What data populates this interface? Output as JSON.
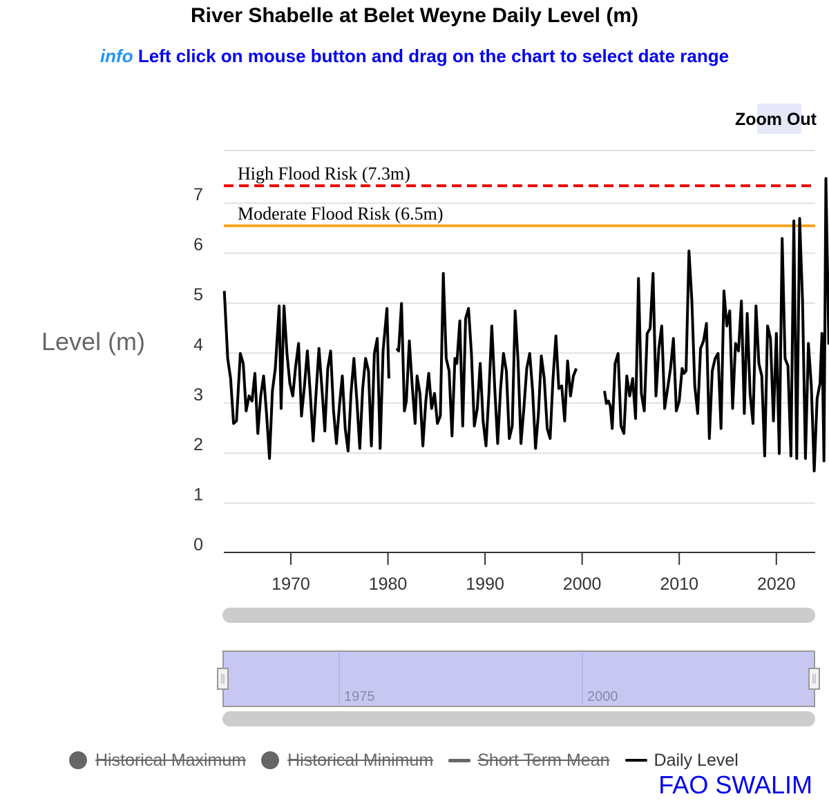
{
  "header": {
    "title": "River Shabelle at Belet Weyne Daily Level (m)",
    "info_word": "info",
    "info_text": "Left click on mouse button and drag on the chart to select date range"
  },
  "toolbar": {
    "zoom_out_label": "Zoom Out"
  },
  "credit": "FAO SWALIM",
  "legend": {
    "items": [
      {
        "label": "Historical Maximum",
        "marker": "circle",
        "active": false
      },
      {
        "label": "Historical Minimum",
        "marker": "circle",
        "active": false
      },
      {
        "label": "Short Term Mean",
        "marker": "line",
        "active": false
      },
      {
        "label": "Daily Level",
        "marker": "line",
        "active": true
      }
    ]
  },
  "colors": {
    "daily_level": "#000000",
    "high_flood": "#ee0000",
    "moderate_flood": "#f5a623",
    "grid": "#e0e0e0",
    "navigator_fill": "#c7c7f2",
    "scrollbar": "#cccccc"
  },
  "chart_data": {
    "type": "line",
    "title": "River Shabelle at Belet Weyne Daily Level (m)",
    "xlabel": "",
    "ylabel": "Level (m)",
    "xlim": [
      1963.1,
      2024.0
    ],
    "ylim": [
      0,
      8
    ],
    "grid": true,
    "x_ticks": [
      1970,
      1980,
      1990,
      2000,
      2010,
      2020
    ],
    "y_ticks": [
      0,
      1,
      2,
      3,
      4,
      5,
      6,
      7
    ],
    "navigator_ticks": [
      1975,
      2000
    ],
    "legend_position": "bottom",
    "thresholds": [
      {
        "name": "High Flood Risk",
        "label": "High Flood Risk (7.3m)",
        "value": 7.3,
        "style": "dashed",
        "color": "#ee0000"
      },
      {
        "name": "Moderate Flood Risk",
        "label": "Moderate Flood Risk (6.5m)",
        "value": 6.5,
        "style": "solid",
        "color": "#f5a623"
      }
    ],
    "series": [
      {
        "name": "Daily Level",
        "segments": [
          [
            [
              1963.15,
              5.05
            ],
            [
              1963.5,
              3.7
            ],
            [
              1963.8,
              3.3
            ],
            [
              1964.1,
              2.4
            ],
            [
              1964.4,
              2.45
            ],
            [
              1964.8,
              3.8
            ],
            [
              1965.1,
              3.6
            ],
            [
              1965.4,
              2.65
            ],
            [
              1965.7,
              2.95
            ],
            [
              1966.0,
              2.85
            ],
            [
              1966.3,
              3.4
            ],
            [
              1966.6,
              2.2
            ],
            [
              1966.9,
              2.95
            ],
            [
              1967.2,
              3.35
            ],
            [
              1967.5,
              2.6
            ],
            [
              1967.8,
              1.7
            ],
            [
              1968.1,
              3.05
            ],
            [
              1968.4,
              3.5
            ],
            [
              1968.8,
              4.75
            ],
            [
              1969.0,
              2.7
            ],
            [
              1969.3,
              4.75
            ],
            [
              1969.6,
              3.8
            ],
            [
              1969.9,
              3.2
            ],
            [
              1970.2,
              2.95
            ],
            [
              1970.5,
              3.55
            ],
            [
              1970.8,
              4.0
            ],
            [
              1971.1,
              2.55
            ],
            [
              1971.4,
              3.15
            ],
            [
              1971.7,
              3.85
            ],
            [
              1972.0,
              3.0
            ],
            [
              1972.3,
              2.05
            ],
            [
              1972.6,
              3.0
            ],
            [
              1972.9,
              3.9
            ],
            [
              1973.2,
              3.1
            ],
            [
              1973.5,
              2.25
            ],
            [
              1973.8,
              3.5
            ],
            [
              1974.1,
              3.85
            ],
            [
              1974.4,
              2.65
            ],
            [
              1974.7,
              2.0
            ],
            [
              1975.0,
              2.75
            ],
            [
              1975.3,
              3.35
            ],
            [
              1975.6,
              2.3
            ],
            [
              1975.9,
              1.85
            ],
            [
              1976.2,
              3.0
            ],
            [
              1976.5,
              3.7
            ],
            [
              1976.8,
              2.85
            ],
            [
              1977.1,
              1.9
            ],
            [
              1977.4,
              3.1
            ],
            [
              1977.7,
              3.7
            ],
            [
              1978.0,
              3.45
            ],
            [
              1978.3,
              1.95
            ],
            [
              1978.6,
              3.8
            ],
            [
              1978.9,
              4.1
            ],
            [
              1979.2,
              1.9
            ],
            [
              1979.5,
              3.85
            ],
            [
              1979.9,
              4.7
            ],
            [
              1980.1,
              3.3
            ]
          ],
          [
            [
              1980.9,
              3.9
            ],
            [
              1981.1,
              3.85
            ],
            [
              1981.4,
              4.8
            ],
            [
              1981.7,
              2.65
            ],
            [
              1981.9,
              2.85
            ],
            [
              1982.2,
              4.05
            ],
            [
              1982.5,
              3.15
            ],
            [
              1982.8,
              2.4
            ],
            [
              1983.0,
              3.35
            ],
            [
              1983.3,
              3.0
            ],
            [
              1983.6,
              1.95
            ],
            [
              1983.9,
              2.85
            ],
            [
              1984.2,
              3.4
            ],
            [
              1984.5,
              2.7
            ],
            [
              1984.8,
              3.0
            ],
            [
              1985.1,
              2.4
            ],
            [
              1985.4,
              2.55
            ],
            [
              1985.7,
              5.4
            ],
            [
              1986.0,
              3.7
            ],
            [
              1986.3,
              3.45
            ],
            [
              1986.6,
              2.15
            ],
            [
              1986.9,
              3.7
            ],
            [
              1987.1,
              3.6
            ],
            [
              1987.4,
              4.45
            ],
            [
              1987.7,
              2.35
            ],
            [
              1988.0,
              4.5
            ],
            [
              1988.3,
              4.7
            ],
            [
              1988.6,
              3.8
            ],
            [
              1988.9,
              2.35
            ],
            [
              1989.2,
              2.7
            ],
            [
              1989.5,
              3.6
            ],
            [
              1989.8,
              2.45
            ],
            [
              1990.1,
              1.95
            ],
            [
              1990.4,
              3.0
            ],
            [
              1990.7,
              4.35
            ],
            [
              1991.0,
              3.1
            ],
            [
              1991.3,
              2.0
            ],
            [
              1991.6,
              3.1
            ],
            [
              1991.9,
              3.8
            ],
            [
              1992.2,
              3.45
            ],
            [
              1992.5,
              2.1
            ],
            [
              1992.8,
              2.35
            ],
            [
              1993.1,
              4.65
            ],
            [
              1993.4,
              3.65
            ],
            [
              1993.7,
              2.0
            ],
            [
              1994.0,
              2.7
            ],
            [
              1994.3,
              3.5
            ],
            [
              1994.6,
              3.8
            ],
            [
              1994.9,
              3.05
            ],
            [
              1995.2,
              1.9
            ],
            [
              1995.5,
              2.6
            ],
            [
              1995.8,
              3.75
            ],
            [
              1996.1,
              3.3
            ],
            [
              1996.4,
              2.3
            ],
            [
              1996.7,
              2.1
            ],
            [
              1997.0,
              3.3
            ],
            [
              1997.3,
              4.15
            ],
            [
              1997.6,
              3.1
            ],
            [
              1997.9,
              3.15
            ],
            [
              1998.2,
              2.45
            ],
            [
              1998.5,
              3.65
            ],
            [
              1998.8,
              2.95
            ],
            [
              1999.1,
              3.35
            ],
            [
              1999.4,
              3.5
            ]
          ],
          [
            [
              2002.3,
              3.05
            ],
            [
              2002.5,
              2.8
            ],
            [
              2002.7,
              2.85
            ],
            [
              2002.9,
              2.75
            ],
            [
              2003.1,
              2.3
            ],
            [
              2003.4,
              3.6
            ],
            [
              2003.7,
              3.8
            ],
            [
              2004.0,
              2.35
            ],
            [
              2004.3,
              2.2
            ],
            [
              2004.6,
              3.35
            ],
            [
              2004.9,
              2.95
            ],
            [
              2005.2,
              3.3
            ],
            [
              2005.5,
              2.5
            ],
            [
              2005.8,
              5.3
            ],
            [
              2006.1,
              3.0
            ],
            [
              2006.4,
              2.65
            ],
            [
              2006.7,
              4.2
            ],
            [
              2007.0,
              4.3
            ],
            [
              2007.3,
              5.4
            ],
            [
              2007.6,
              2.95
            ],
            [
              2007.9,
              3.9
            ],
            [
              2008.2,
              4.35
            ],
            [
              2008.5,
              2.7
            ],
            [
              2008.8,
              3.1
            ],
            [
              2009.1,
              3.5
            ],
            [
              2009.4,
              4.1
            ],
            [
              2009.7,
              2.65
            ],
            [
              2010.0,
              2.85
            ],
            [
              2010.3,
              3.5
            ],
            [
              2010.5,
              3.4
            ],
            [
              2010.7,
              3.45
            ],
            [
              2011.0,
              5.85
            ],
            [
              2011.3,
              4.85
            ],
            [
              2011.6,
              3.15
            ],
            [
              2011.9,
              2.6
            ],
            [
              2012.2,
              3.9
            ],
            [
              2012.5,
              4.05
            ],
            [
              2012.8,
              4.4
            ],
            [
              2013.1,
              2.1
            ],
            [
              2013.4,
              3.45
            ],
            [
              2013.7,
              3.7
            ],
            [
              2014.0,
              3.8
            ],
            [
              2014.3,
              2.3
            ],
            [
              2014.6,
              5.05
            ],
            [
              2014.9,
              4.35
            ],
            [
              2015.2,
              4.65
            ],
            [
              2015.5,
              2.7
            ],
            [
              2015.8,
              4.0
            ],
            [
              2016.1,
              3.85
            ],
            [
              2016.4,
              4.85
            ],
            [
              2016.7,
              2.6
            ],
            [
              2017.0,
              4.6
            ],
            [
              2017.3,
              3.0
            ],
            [
              2017.6,
              2.4
            ],
            [
              2017.9,
              4.75
            ],
            [
              2018.2,
              3.6
            ],
            [
              2018.5,
              3.35
            ],
            [
              2018.8,
              1.75
            ],
            [
              2019.1,
              4.35
            ],
            [
              2019.4,
              4.1
            ],
            [
              2019.7,
              2.45
            ],
            [
              2020.0,
              4.2
            ],
            [
              2020.3,
              1.8
            ],
            [
              2020.6,
              6.1
            ],
            [
              2020.9,
              3.7
            ],
            [
              2021.2,
              3.55
            ],
            [
              2021.5,
              1.75
            ],
            [
              2021.8,
              6.45
            ],
            [
              2022.1,
              1.7
            ],
            [
              2022.4,
              6.5
            ],
            [
              2022.7,
              4.85
            ],
            [
              2023.0,
              1.7
            ],
            [
              2023.3,
              4.0
            ],
            [
              2023.6,
              3.15
            ],
            [
              2023.9,
              1.45
            ],
            [
              2024.2,
              2.9
            ],
            [
              2024.5,
              3.2
            ],
            [
              2024.7,
              4.2
            ],
            [
              2024.9,
              1.65
            ],
            [
              2025.1,
              7.3
            ],
            [
              2025.4,
              4.0
            ],
            [
              2025.7,
              6.8
            ]
          ]
        ]
      }
    ]
  }
}
